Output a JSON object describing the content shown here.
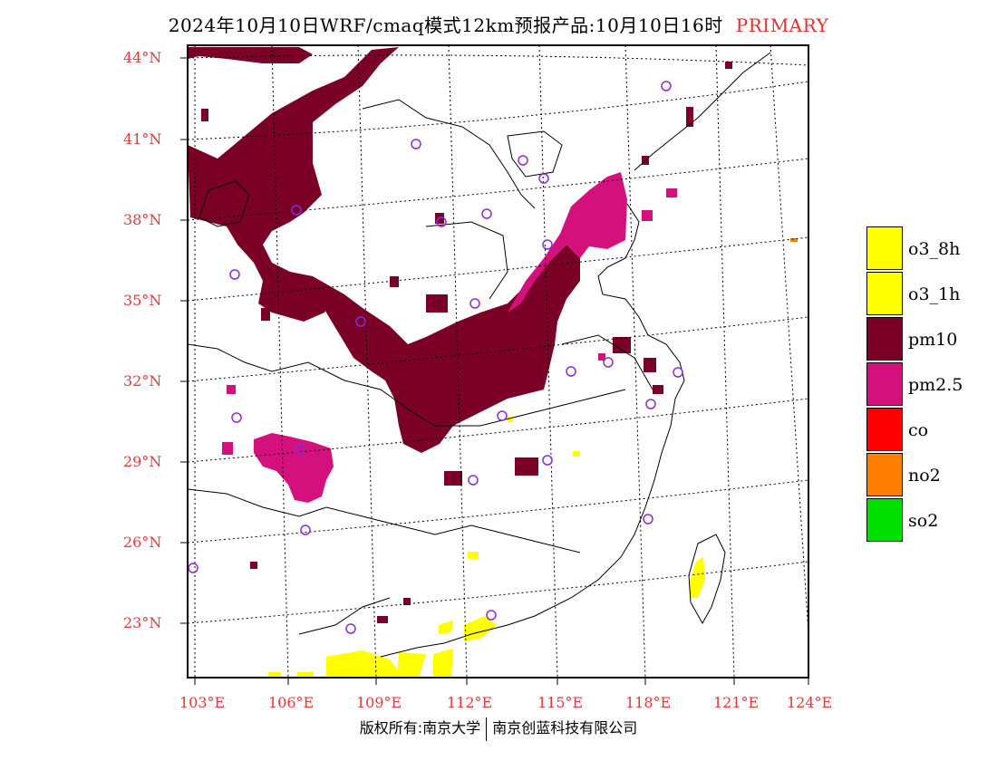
{
  "title": {
    "text": "2024年10月10日WRF/cmaq模式12km预报产品:10月10日16时",
    "tag": "PRIMARY"
  },
  "lat_labels": [
    "44°N",
    "41°N",
    "38°N",
    "35°N",
    "32°N",
    "29°N",
    "26°N",
    "23°N"
  ],
  "lon_labels": [
    "103°E",
    "106°E",
    "109°E",
    "112°E",
    "115°E",
    "118°E",
    "121°E",
    "124°E"
  ],
  "legend": [
    {
      "label": "o3_8h",
      "color": "#ffff00"
    },
    {
      "label": "o3_1h",
      "color": "#ffff00"
    },
    {
      "label": "pm10",
      "color": "#7a0028"
    },
    {
      "label": "pm2.5",
      "color": "#d4107c"
    },
    {
      "label": "co",
      "color": "#ff0000"
    },
    {
      "label": "no2",
      "color": "#ff8000"
    },
    {
      "label": "so2",
      "color": "#00e000"
    }
  ],
  "footer": {
    "left": "版权所有:南京大学",
    "right": "南京创蓝科技有限公司"
  },
  "colors": {
    "label_red": "#e03a3a",
    "station_circle": "#8a2be2"
  }
}
